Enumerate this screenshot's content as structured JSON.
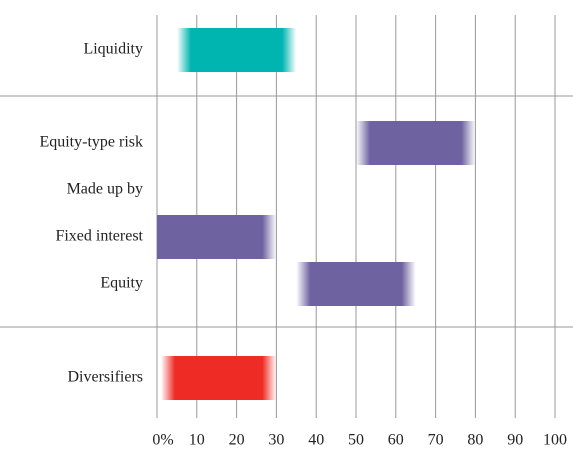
{
  "chart_data": {
    "type": "range-bar",
    "categories": [
      "Liquidity",
      "Equity-type risk",
      "Made up by",
      "Fixed interest",
      "Equity",
      "Diversifiers"
    ],
    "values": [
      [
        5,
        35
      ],
      [
        50,
        80
      ],
      null,
      [
        0,
        30
      ],
      [
        35,
        65
      ],
      [
        1,
        30
      ]
    ],
    "colors": [
      "#00b5b0",
      "#6e62a0",
      "#6e62a0",
      "#6e62a0",
      "#6e62a0",
      "#ee2b24"
    ],
    "xlim": [
      0,
      100
    ],
    "xticks": [
      {
        "value": 0,
        "label": "0%"
      },
      10,
      20,
      30,
      40,
      50,
      60,
      70,
      80,
      90,
      100
    ],
    "grid": true
  }
}
